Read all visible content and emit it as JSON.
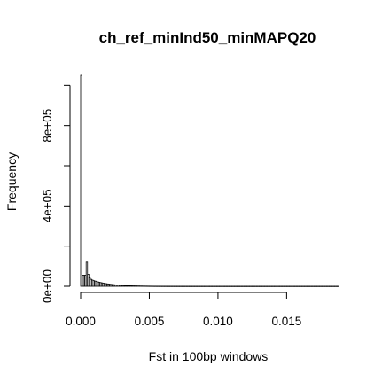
{
  "chart_data": {
    "type": "histogram",
    "title": "ch_ref_minInd50_minMAPQ20",
    "xlabel": "Fst in 100bp windows",
    "ylabel": "Frequency",
    "x_ticks": [
      0.0,
      0.005,
      0.01,
      0.015
    ],
    "x_tick_labels": [
      "0.000",
      "0.005",
      "0.010",
      "0.015"
    ],
    "y_ticks": [
      0,
      200000,
      400000,
      600000,
      800000,
      1000000
    ],
    "y_tick_labels": [
      "0e+00",
      "",
      "4e+05",
      "",
      "8e+05",
      ""
    ],
    "xlim": [
      0,
      0.0193
    ],
    "ylim": [
      0,
      1050000
    ],
    "grid": false,
    "bin_width": 0.0001,
    "bin_start": 0.0,
    "counts": [
      1050000,
      55000,
      55000,
      55000,
      120000,
      60000,
      42000,
      35000,
      31000,
      28000,
      26000,
      24000,
      22000,
      20000,
      18500,
      17000,
      15500,
      14200,
      13000,
      12000,
      11000,
      10000,
      9200,
      8400,
      7700,
      7000,
      6400,
      5800,
      5300,
      4800,
      4400,
      4000,
      3600,
      3300,
      3000,
      2700,
      2450,
      2200,
      2000,
      1800,
      1650,
      1500,
      1350,
      1200,
      1100,
      1000,
      900,
      820,
      740,
      670,
      600,
      540,
      490,
      440,
      400,
      360,
      330,
      300,
      270,
      240,
      220,
      200,
      180,
      160,
      145,
      130,
      118,
      106,
      95,
      85,
      76,
      68,
      61,
      55,
      49,
      44,
      40,
      36,
      32,
      29,
      26,
      23,
      21,
      19,
      17,
      15,
      14,
      12,
      11,
      10,
      9,
      8,
      7,
      6,
      6,
      5,
      5,
      4,
      4,
      3,
      3,
      3,
      2,
      2,
      2,
      2,
      1,
      1,
      1,
      1,
      1,
      1,
      1,
      1,
      1,
      1,
      1,
      1,
      1,
      1,
      1,
      1,
      1,
      1,
      1,
      1,
      1,
      1,
      1,
      1,
      1,
      1,
      1,
      1,
      1,
      1,
      1,
      1,
      1,
      1,
      1,
      1,
      1,
      1,
      1,
      1,
      1,
      1,
      1,
      1,
      1,
      1,
      1,
      1,
      1,
      1,
      1,
      1,
      1,
      1,
      1,
      1,
      1,
      1,
      1,
      1,
      1,
      1,
      1,
      1,
      1,
      1,
      1,
      1,
      1,
      1,
      1,
      1,
      1,
      1,
      1,
      1,
      1,
      1,
      1,
      1,
      1,
      1
    ]
  }
}
